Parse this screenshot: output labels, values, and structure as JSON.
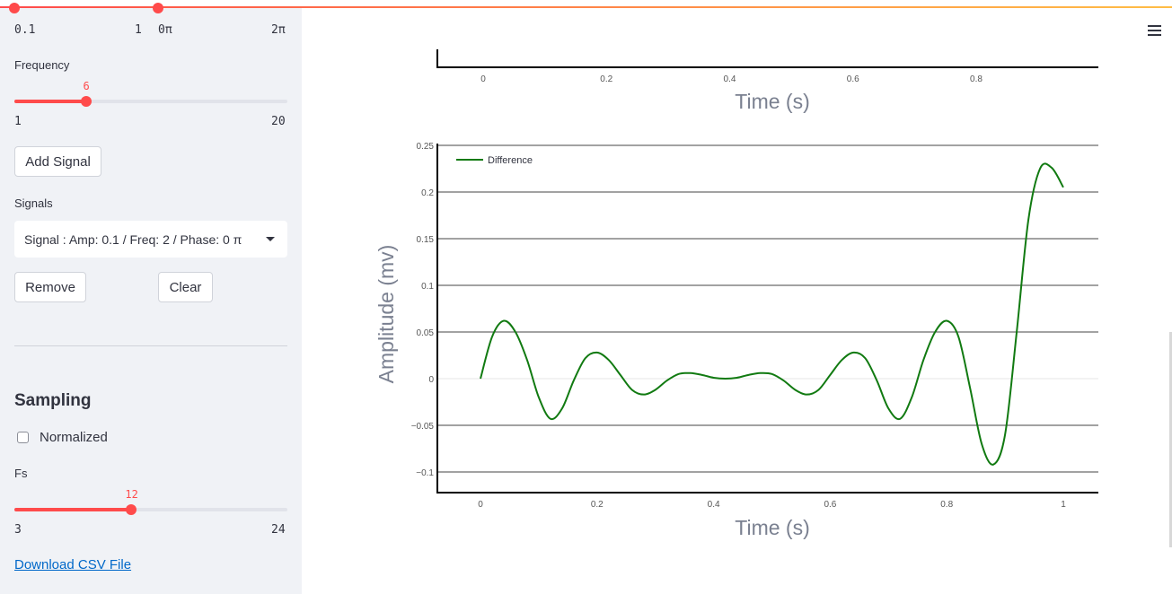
{
  "sidebar": {
    "phase_slider": {
      "min_label": "0π",
      "max_label": "2π",
      "level": 0
    },
    "amp_slider": {
      "min_label": "0.1",
      "max_label": "1",
      "level": 0
    },
    "frequency": {
      "label": "Frequency",
      "value": "6",
      "min_label": "1",
      "max_label": "20",
      "level": 0.263
    },
    "add_signal_button": "Add Signal",
    "signals": {
      "label": "Signals",
      "selected": "Signal : Amp: 0.1 / Freq: 2 / Phase: 0 π"
    },
    "remove_button": "Remove",
    "clear_button": "Clear",
    "sampling": {
      "heading": "Sampling",
      "normalized_label": "Normalized",
      "normalized_checked": false
    },
    "fs": {
      "label": "Fs",
      "value": "12",
      "min_label": "3",
      "max_label": "24",
      "level": 0.429
    },
    "download_link": "Download CSV File"
  },
  "colors": {
    "accent": "#ff4b4b",
    "line": "#117a11",
    "link": "#0068c9"
  },
  "top_chart": {
    "x_ticks": [
      "0",
      "0.2",
      "0.4",
      "0.6",
      "0.8"
    ],
    "xlabel": "Time (s)"
  },
  "chart_data": {
    "type": "line",
    "xlabel": "Time (s)",
    "ylabel": "Amplitude (mv)",
    "x_ticks": [
      "0",
      "0.2",
      "0.4",
      "0.6",
      "0.8",
      "1"
    ],
    "y_ticks": [
      "0.25",
      "0.2",
      "0.15",
      "0.1",
      "0.05",
      "0",
      "−0.05",
      "−0.1"
    ],
    "xlim": [
      -0.075,
      1.06
    ],
    "ylim": [
      -0.122,
      0.25
    ],
    "legend_position": "top-left",
    "series": [
      {
        "name": "Difference",
        "x": [
          0,
          0.02,
          0.04,
          0.06,
          0.08,
          0.1,
          0.12,
          0.14,
          0.16,
          0.18,
          0.2,
          0.22,
          0.24,
          0.26,
          0.28,
          0.3,
          0.32,
          0.34,
          0.36,
          0.38,
          0.4,
          0.42,
          0.44,
          0.46,
          0.48,
          0.5,
          0.52,
          0.54,
          0.56,
          0.58,
          0.6,
          0.62,
          0.64,
          0.66,
          0.68,
          0.7,
          0.72,
          0.74,
          0.76,
          0.78,
          0.8,
          0.82,
          0.84,
          0.86,
          0.88,
          0.9,
          0.92,
          0.94,
          0.96,
          0.98,
          1.0
        ],
        "y": [
          0,
          0.045,
          0.062,
          0.05,
          0.02,
          -0.02,
          -0.043,
          -0.032,
          -0.002,
          0.022,
          0.028,
          0.02,
          0.004,
          -0.012,
          -0.017,
          -0.012,
          -0.002,
          0.005,
          0.006,
          0.004,
          0.001,
          0.0,
          0.001,
          0.004,
          0.006,
          0.005,
          -0.002,
          -0.012,
          -0.017,
          -0.012,
          0.004,
          0.02,
          0.028,
          0.022,
          -0.002,
          -0.032,
          -0.043,
          -0.02,
          0.02,
          0.05,
          0.062,
          0.045,
          -0.01,
          -0.07,
          -0.092,
          -0.06,
          0.05,
          0.17,
          0.225,
          0.226,
          0.205
        ]
      }
    ]
  }
}
